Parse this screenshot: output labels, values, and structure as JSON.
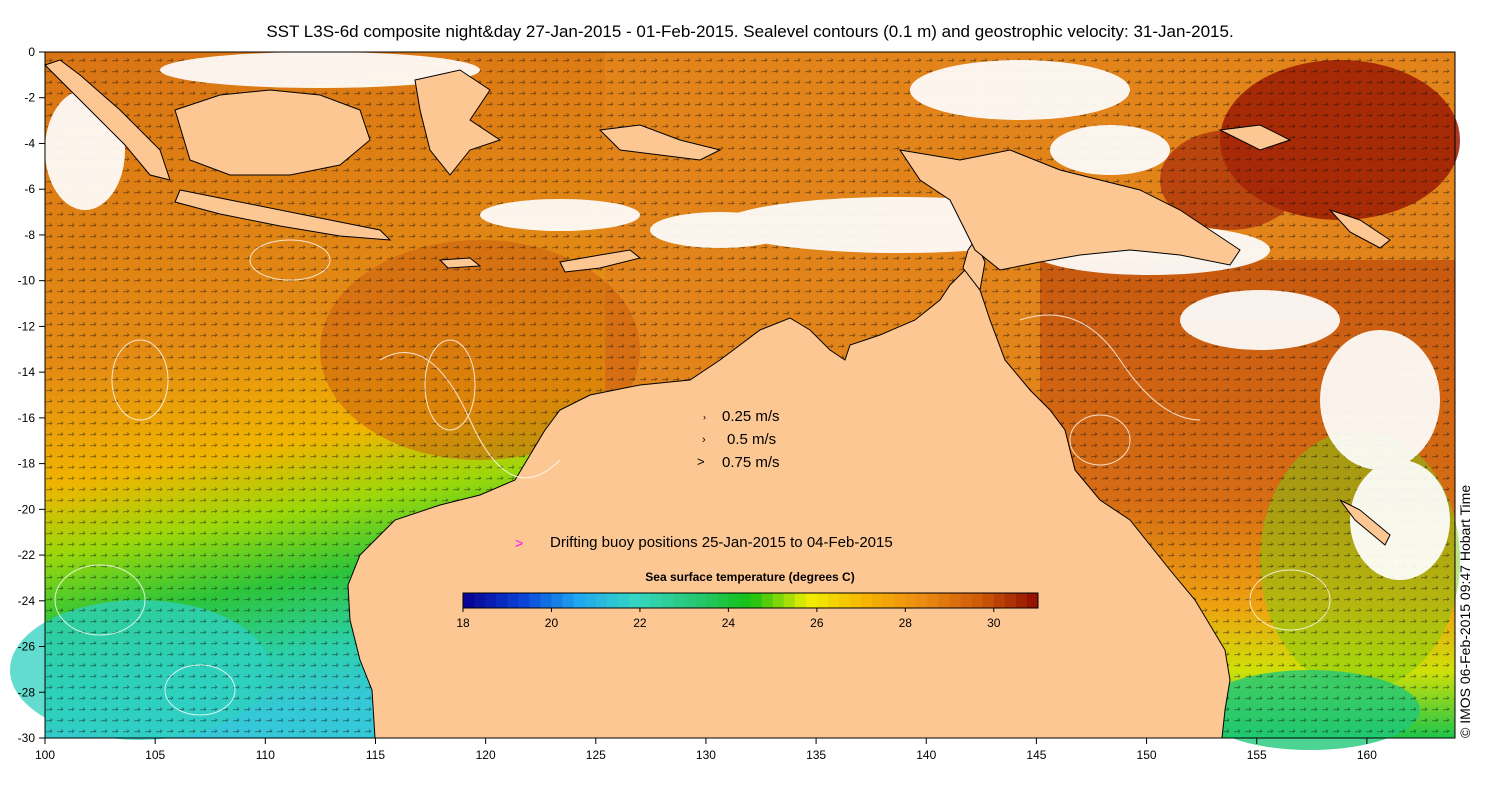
{
  "title": "SST L3S-6d composite night&day 27-Jan-2015 - 01-Feb-2015. Sealevel contours (0.1 m) and geostrophic velocity: 31-Jan-2015.",
  "map": {
    "lon_range": [
      100,
      164
    ],
    "lat_range": [
      -30,
      0
    ],
    "x_ticks": [
      "100",
      "105",
      "110",
      "115",
      "120",
      "125",
      "130",
      "135",
      "140",
      "145",
      "150",
      "155",
      "160"
    ],
    "y_ticks": [
      "0",
      "-2",
      "-4",
      "-6",
      "-8",
      "-10",
      "-12",
      "-14",
      "-16",
      "-18",
      "-20",
      "-22",
      "-24",
      "-26",
      "-28",
      "-30"
    ],
    "land_color": "#fdc794",
    "cloud_color": "#ffffff"
  },
  "velocity_key": {
    "items": [
      "0.25 m/s",
      "0.5 m/s",
      "0.75 m/s"
    ]
  },
  "buoy_legend": {
    "marker": ">",
    "marker_color": "#ff00ff",
    "label": "Drifting buoy positions 25-Jan-2015 to 04-Feb-2015"
  },
  "colorbar": {
    "title": "Sea surface temperature (degrees C)",
    "range": [
      18,
      31
    ],
    "ticks": [
      "18",
      "20",
      "22",
      "24",
      "26",
      "28",
      "30"
    ],
    "stops": [
      "#08008f",
      "#0a3fd6",
      "#1fa6f0",
      "#35d6c2",
      "#28c878",
      "#16c012",
      "#f0ee00",
      "#f6b400",
      "#ea8a12",
      "#cf5a08",
      "#8e0d00"
    ]
  },
  "credit": "© IMOS 06-Feb-2015 09:47 Hobart Time"
}
